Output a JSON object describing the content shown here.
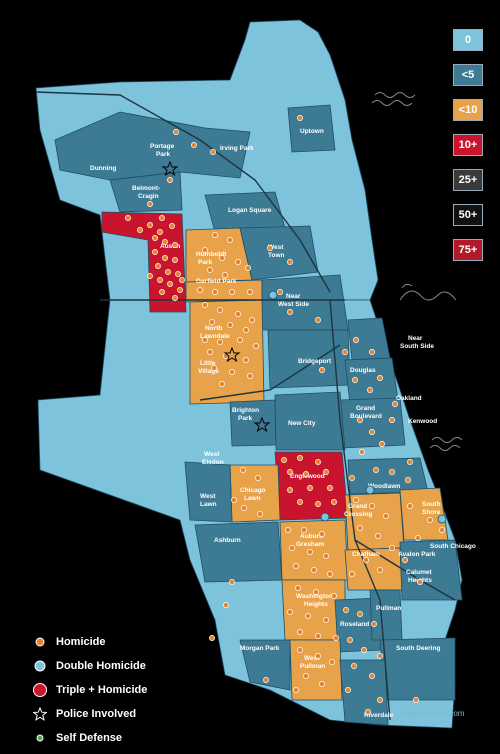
{
  "colors": {
    "bg": "#000000",
    "zero": "#7ec3dc",
    "under5": "#3d7a94",
    "under10": "#e8a24a",
    "ten_plus": "#c8142c",
    "dark": "#2a2a2a",
    "dot": "#e8832a"
  },
  "scale": [
    {
      "label": "0",
      "color": "#7ec3dc"
    },
    {
      "label": "<5",
      "color": "#3d7a94"
    },
    {
      "label": "<10",
      "color": "#e8a24a"
    },
    {
      "label": "10+",
      "color": "#c8142c"
    },
    {
      "label": "25+",
      "color": "#3a3a3a"
    },
    {
      "label": "50+",
      "color": "#111111"
    },
    {
      "label": "75+",
      "color": "#b01a2a"
    }
  ],
  "legend": [
    {
      "label": "Homicide",
      "icon": "orange-dot-icon"
    },
    {
      "label": "Double Homicide",
      "icon": "blue-dot-icon"
    },
    {
      "label": "Triple + Homicide",
      "icon": "red-dot-icon"
    },
    {
      "label": "Police Involved",
      "icon": "star-icon"
    },
    {
      "label": "Self Defense",
      "icon": "green-dot-icon"
    }
  ],
  "neighborhoods": {
    "uptown": "Uptown",
    "portage_park_1": "Portage",
    "portage_park_2": "Park",
    "irving_park": "Irving Park",
    "dunning": "Dunning",
    "belmont_1": "Belmont-",
    "belmont_2": "Cragin",
    "logan_square": "Logan Square",
    "austin": "Austin",
    "humboldt_1": "Humboldt",
    "humboldt_2": "Park",
    "west_town_1": "West",
    "west_town_2": "Town",
    "garfield_park": "Garfield Park",
    "near_west_1": "Near",
    "near_west_2": "West Side",
    "north_lawndale_1": "North",
    "north_lawndale_2": "Lawndale",
    "little_village_1": "Little",
    "little_village_2": "Village",
    "near_south_1": "Near",
    "near_south_2": "South Side",
    "bridgeport": "Bridgeport",
    "douglas": "Douglas",
    "oakland": "Oakland",
    "grand_blvd_1": "Grand",
    "grand_blvd_2": "Boulevard",
    "kenwood": "Kenwood",
    "brighton_1": "Brighton",
    "brighton_2": "Park",
    "new_city": "New City",
    "west_elsdon_1": "West",
    "west_elsdon_2": "Elsdon",
    "englewood": "Englewood",
    "woodlawn": "Woodlawn",
    "chicago_lawn_1": "Chicago",
    "chicago_lawn_2": "Lawn",
    "west_lawn_1": "West",
    "west_lawn_2": "Lawn",
    "greater_grand_1": "Grand",
    "greater_grand_2": "Crossing",
    "south_shore_1": "South",
    "south_shore_2": "Shore",
    "ashburn": "Ashburn",
    "auburn_1": "Auburn",
    "auburn_2": "Gresham",
    "chatham": "Chatham",
    "avalon": "Avalon Park",
    "south_chicago": "South Chicago",
    "calumet_1": "Calumet",
    "calumet_2": "Heights",
    "washington_1": "Washington",
    "washington_2": "Heights",
    "pullman": "Pullman",
    "roseland": "Roseland",
    "morgan_park": "Morgan Park",
    "south_deering": "South Deering",
    "west_pullman_1": "West",
    "west_pullman_2": "Pullman",
    "riverdale": "Riverdale"
  },
  "credit": "HeyJackass.com"
}
